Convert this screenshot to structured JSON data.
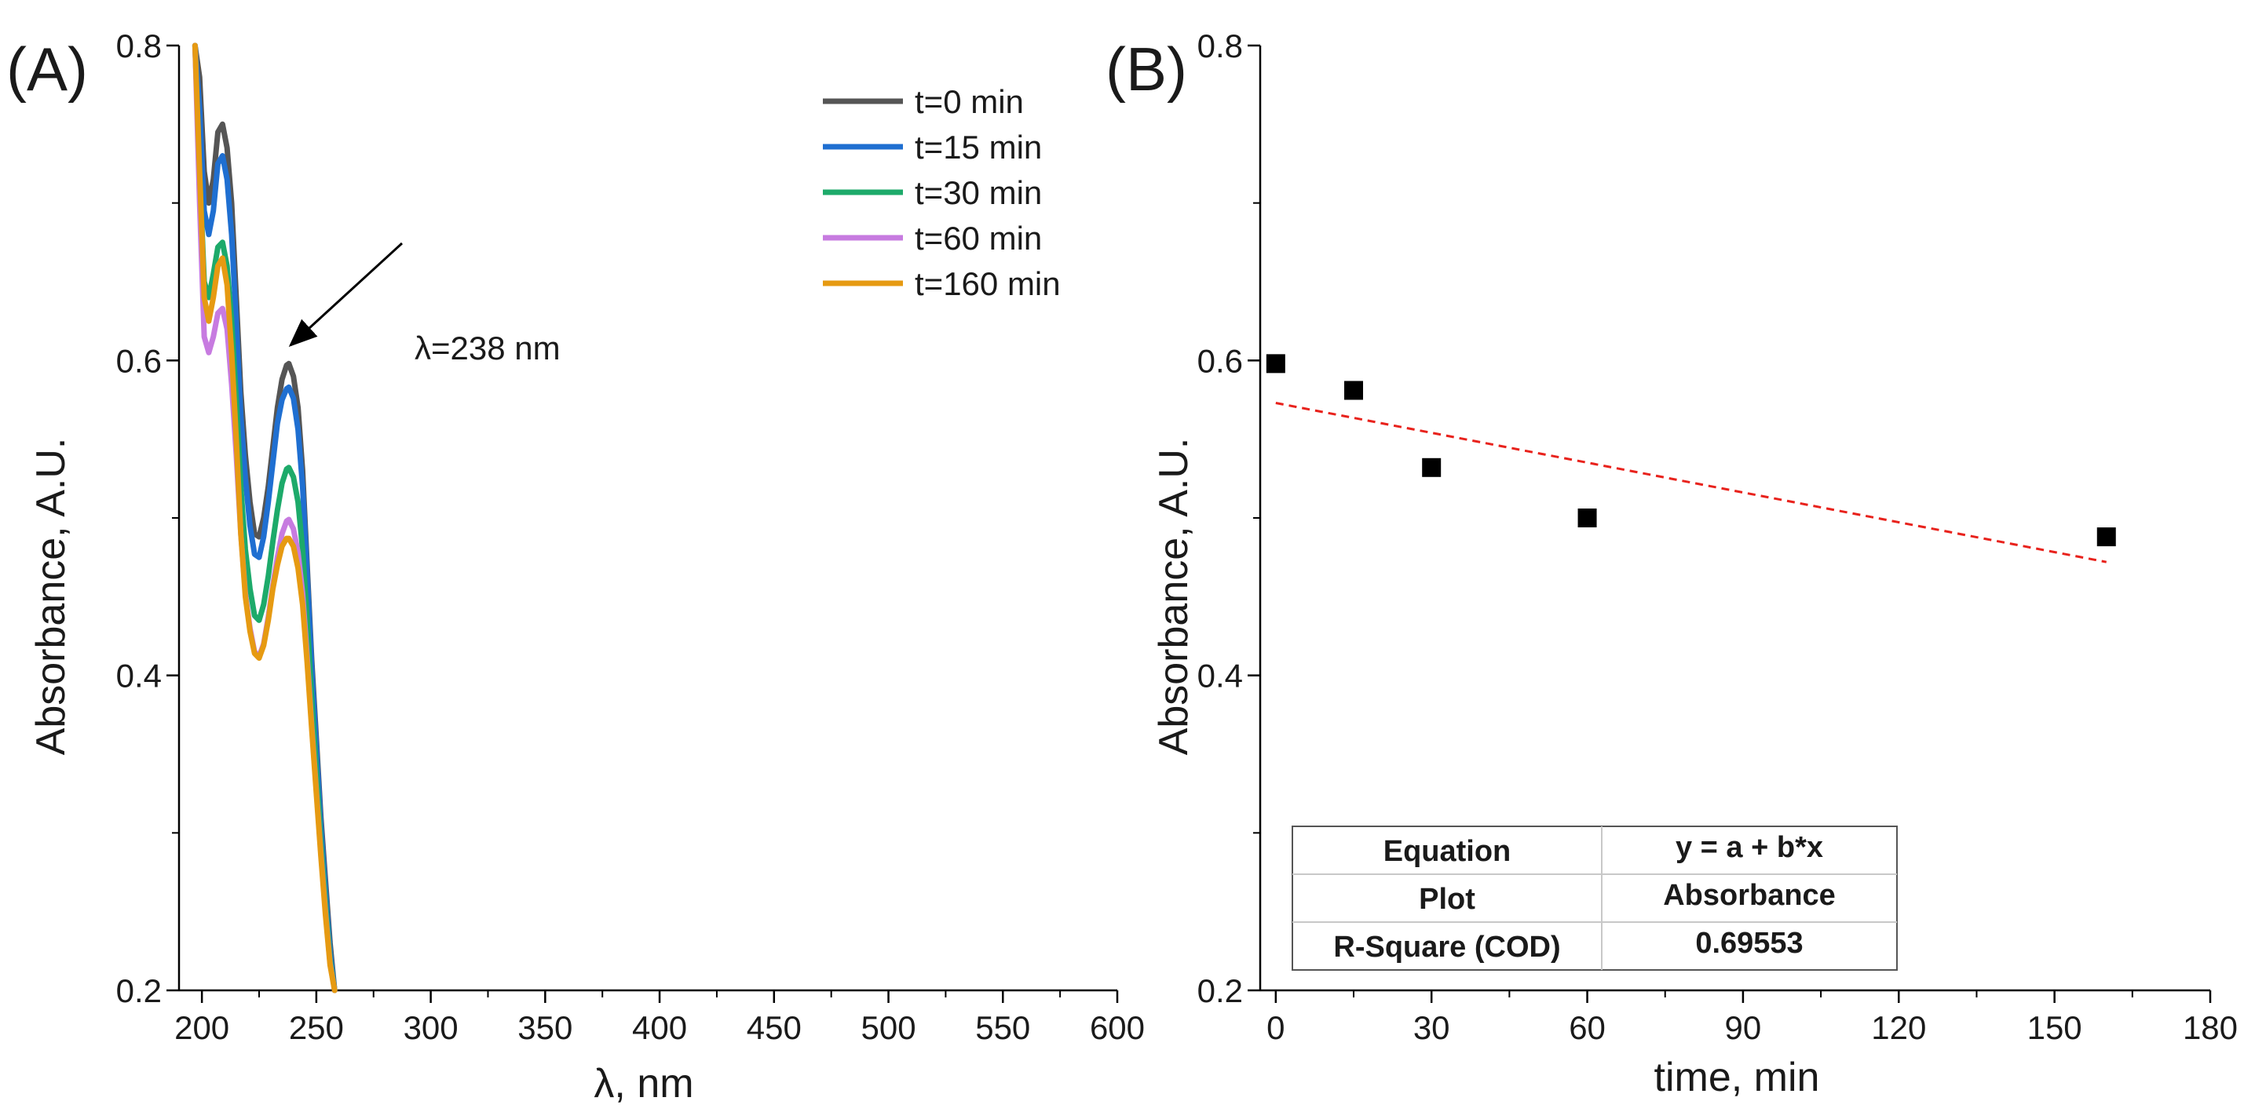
{
  "chart_data": [
    {
      "panel_label": "(A)",
      "type": "line",
      "xlabel": "λ, nm",
      "ylabel": "Absorbance, A.U.",
      "xlim": [
        190,
        600
      ],
      "ylim": [
        0.2,
        0.8
      ],
      "x_ticks": [
        200,
        250,
        300,
        350,
        400,
        450,
        500,
        550,
        600
      ],
      "y_ticks": [
        0.2,
        0.4,
        0.6,
        0.8
      ],
      "legend_placement": "top-right",
      "annotation": "λ=238 nm",
      "series": [
        {
          "name": "t=0 min",
          "color": "#555555",
          "x": [
            197,
            199,
            201,
            203,
            205,
            207,
            209,
            211,
            213,
            215,
            217,
            219,
            221,
            223,
            225,
            227,
            229,
            231,
            233,
            235,
            237,
            238,
            240,
            242,
            244,
            246,
            248,
            250,
            252,
            254,
            256,
            258
          ],
          "y": [
            0.8,
            0.78,
            0.72,
            0.7,
            0.715,
            0.745,
            0.75,
            0.735,
            0.7,
            0.64,
            0.58,
            0.54,
            0.51,
            0.49,
            0.488,
            0.5,
            0.52,
            0.545,
            0.57,
            0.588,
            0.597,
            0.598,
            0.59,
            0.57,
            0.53,
            0.47,
            0.41,
            0.36,
            0.31,
            0.27,
            0.23,
            0.2
          ]
        },
        {
          "name": "t=15 min",
          "color": "#1f6fd1",
          "x": [
            197,
            199,
            201,
            203,
            205,
            207,
            209,
            211,
            213,
            215,
            217,
            219,
            221,
            223,
            225,
            227,
            229,
            231,
            233,
            235,
            237,
            238,
            240,
            242,
            244,
            246,
            248,
            250,
            252,
            254,
            256,
            258
          ],
          "y": [
            0.8,
            0.76,
            0.695,
            0.68,
            0.695,
            0.725,
            0.73,
            0.715,
            0.68,
            0.625,
            0.565,
            0.525,
            0.495,
            0.477,
            0.475,
            0.488,
            0.51,
            0.535,
            0.56,
            0.575,
            0.582,
            0.583,
            0.576,
            0.556,
            0.52,
            0.465,
            0.405,
            0.355,
            0.305,
            0.265,
            0.225,
            0.2
          ]
        },
        {
          "name": "t=30 min",
          "color": "#1daa6a",
          "x": [
            197,
            199,
            201,
            203,
            205,
            207,
            209,
            211,
            213,
            215,
            217,
            219,
            221,
            223,
            225,
            227,
            229,
            231,
            233,
            235,
            237,
            238,
            240,
            242,
            244,
            246,
            248,
            250,
            252,
            254,
            256,
            258
          ],
          "y": [
            0.8,
            0.72,
            0.65,
            0.64,
            0.655,
            0.672,
            0.675,
            0.66,
            0.625,
            0.575,
            0.52,
            0.48,
            0.455,
            0.438,
            0.435,
            0.445,
            0.463,
            0.485,
            0.505,
            0.522,
            0.531,
            0.532,
            0.526,
            0.51,
            0.48,
            0.435,
            0.385,
            0.34,
            0.295,
            0.257,
            0.22,
            0.2
          ]
        },
        {
          "name": "t=60 min",
          "color": "#c77be0",
          "x": [
            197,
            199,
            201,
            203,
            205,
            207,
            209,
            211,
            213,
            215,
            217,
            219,
            221,
            223,
            225,
            227,
            229,
            231,
            233,
            235,
            237,
            238,
            240,
            242,
            244,
            246,
            248,
            250,
            252,
            254,
            256,
            258
          ],
          "y": [
            0.8,
            0.7,
            0.615,
            0.605,
            0.615,
            0.63,
            0.633,
            0.62,
            0.585,
            0.54,
            0.49,
            0.452,
            0.43,
            0.415,
            0.412,
            0.42,
            0.437,
            0.457,
            0.475,
            0.49,
            0.498,
            0.499,
            0.493,
            0.478,
            0.452,
            0.412,
            0.368,
            0.327,
            0.287,
            0.25,
            0.217,
            0.2
          ]
        },
        {
          "name": "t=160 min",
          "color": "#e69a12",
          "x": [
            197,
            199,
            201,
            203,
            205,
            207,
            209,
            211,
            213,
            215,
            217,
            219,
            221,
            223,
            225,
            227,
            229,
            231,
            233,
            235,
            237,
            238,
            240,
            242,
            244,
            246,
            248,
            250,
            252,
            254,
            256,
            258
          ],
          "y": [
            0.8,
            0.72,
            0.64,
            0.625,
            0.64,
            0.66,
            0.665,
            0.648,
            0.605,
            0.55,
            0.49,
            0.45,
            0.428,
            0.414,
            0.411,
            0.419,
            0.435,
            0.455,
            0.47,
            0.482,
            0.487,
            0.487,
            0.482,
            0.468,
            0.445,
            0.408,
            0.366,
            0.325,
            0.285,
            0.248,
            0.216,
            0.2
          ]
        }
      ]
    },
    {
      "panel_label": "(B)",
      "type": "scatter",
      "xlabel": "time, min",
      "ylabel": "Absorbance, A.U.",
      "xlim": [
        -3,
        180
      ],
      "ylim": [
        0.2,
        0.8
      ],
      "x_ticks": [
        0,
        30,
        60,
        90,
        120,
        150,
        180
      ],
      "y_ticks": [
        0.2,
        0.4,
        0.6,
        0.8
      ],
      "marker_color": "#000000",
      "fit_color": "#e8221c",
      "points": {
        "x": [
          0,
          15,
          30,
          60,
          160
        ],
        "y": [
          0.598,
          0.581,
          0.532,
          0.5,
          0.488
        ]
      },
      "fit_line": {
        "x": [
          0,
          160
        ],
        "y": [
          0.573,
          0.472
        ]
      },
      "fit_table": [
        [
          "Equation",
          "y = a + b*x"
        ],
        [
          "Plot",
          "Absorbance"
        ],
        [
          "R-Square (COD)",
          "0.69553"
        ]
      ]
    }
  ]
}
